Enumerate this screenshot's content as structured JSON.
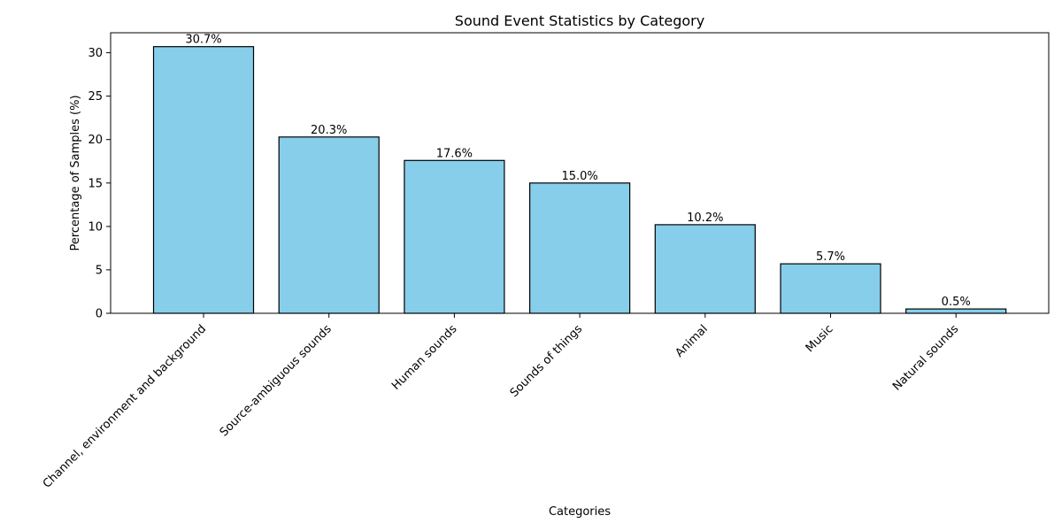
{
  "chart_data": {
    "type": "bar",
    "title": "Sound Event Statistics by Category",
    "xlabel": "Categories",
    "ylabel": "Percentage of Samples (%)",
    "categories": [
      "Channel, environment and background",
      "Source-ambiguous sounds",
      "Human sounds",
      "Sounds of things",
      "Animal",
      "Music",
      "Natural sounds"
    ],
    "values": [
      30.7,
      20.3,
      17.6,
      15.0,
      10.2,
      5.7,
      0.5
    ],
    "data_labels": [
      "30.7%",
      "20.3%",
      "17.6%",
      "15.0%",
      "10.2%",
      "5.7%",
      "0.5%"
    ],
    "ylim": [
      0,
      32.3
    ],
    "yticks": [
      0,
      5,
      10,
      15,
      20,
      25,
      30
    ],
    "bar_color": "#87ceeb",
    "edge_color": "#000000",
    "grid": false,
    "legend": "none"
  }
}
